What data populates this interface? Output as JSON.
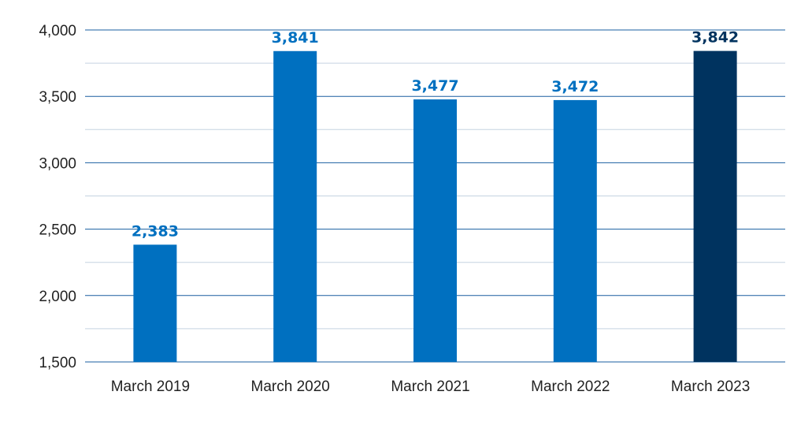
{
  "chart_data": {
    "type": "bar",
    "categories": [
      "March 2019",
      "March 2020",
      "March 2021",
      "March 2022",
      "March 2023"
    ],
    "values": [
      2383,
      3841,
      3477,
      3472,
      3842
    ],
    "value_labels": [
      "2,383",
      "3,841",
      "3,477",
      "3,472",
      "3,842"
    ],
    "ylim": [
      1500,
      4000
    ],
    "y_ticks": [
      1500,
      2000,
      2500,
      3000,
      3500,
      4000
    ],
    "y_tick_labels": [
      "1,500",
      "2,000",
      "2,500",
      "3,000",
      "3,500",
      "4,000"
    ],
    "grid": true,
    "legend": "none",
    "title": "",
    "xlabel": "",
    "ylabel": "",
    "colors": {
      "bar": "#0070c0",
      "highlight_bar": "#00335f",
      "label": "#0070c0",
      "highlight_label": "#00335f",
      "major_grid": "#1a5fa0",
      "minor_grid": "#c5d3e0"
    },
    "highlight_index": 4
  }
}
